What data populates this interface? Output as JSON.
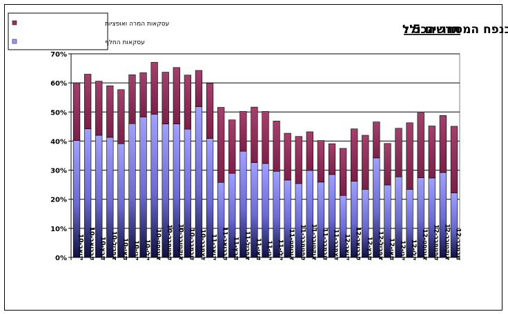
{
  "chart_data": {
    "type": "bar",
    "stacked": true,
    "title_prefix": "תרשים 5 :",
    "title": "חלקם של תושבי חוץ בנפח המסחר הכולל",
    "ylim": [
      0,
      70
    ],
    "yticks": [
      "0%",
      "10%",
      "20%",
      "30%",
      "40%",
      "50%",
      "60%",
      "70%"
    ],
    "grid": true,
    "legend_position": "top-left",
    "categories": [
      "ינואר-10",
      "פברואר-10",
      "מרץ-10",
      "אפריל-10",
      "מאי-10",
      "יוני-10",
      "יולי-10",
      "אוגוסט-10",
      "ספטמבר-10",
      "אוקטובר-10",
      "נובמבר-10",
      "דצמבר-10",
      "ינואר-11",
      "פברואר-11",
      "מרץ-11",
      "אפריל-11",
      "מאי-11",
      "יוני-11",
      "יולי-11",
      "אוגוסט-11",
      "ספטמבר-11",
      "אוקטובר-11",
      "נובמבר-11",
      "דצמבר-11",
      "ינואר-12",
      "פברואר-12",
      "מרץ-12",
      "אפריל-12",
      "מאי-12",
      "יוני-12",
      "יולי-12",
      "אוגוסט-12",
      "ספטמבר-12",
      "אוקטובר-12",
      "נובמבר-12"
    ],
    "series": [
      {
        "name": "עסקאות החלף",
        "color": "#9999ff",
        "values": [
          40.2,
          44.2,
          42.0,
          41.3,
          39.1,
          46.0,
          48.3,
          49.2,
          45.9,
          45.9,
          44.1,
          51.8,
          40.9,
          25.8,
          28.9,
          36.5,
          32.6,
          32.3,
          29.6,
          26.6,
          25.4,
          29.9,
          25.9,
          28.5,
          21.3,
          26.2,
          23.4,
          34.2,
          24.9,
          27.7,
          23.4,
          27.4,
          27.3,
          29.2,
          22.2
        ]
      },
      {
        "name": "עסקאות המרה ואופציות",
        "color": "#993366",
        "values": [
          19.8,
          18.8,
          18.6,
          17.7,
          18.6,
          16.8,
          15.2,
          17.9,
          17.8,
          19.4,
          18.6,
          12.5,
          19.0,
          25.8,
          18.4,
          13.7,
          19.1,
          17.9,
          17.3,
          16.1,
          16.2,
          13.3,
          14.3,
          10.6,
          16.2,
          18.0,
          18.6,
          12.4,
          14.3,
          16.7,
          22.9,
          22.3,
          17.9,
          19.6,
          22.9
        ]
      }
    ]
  }
}
